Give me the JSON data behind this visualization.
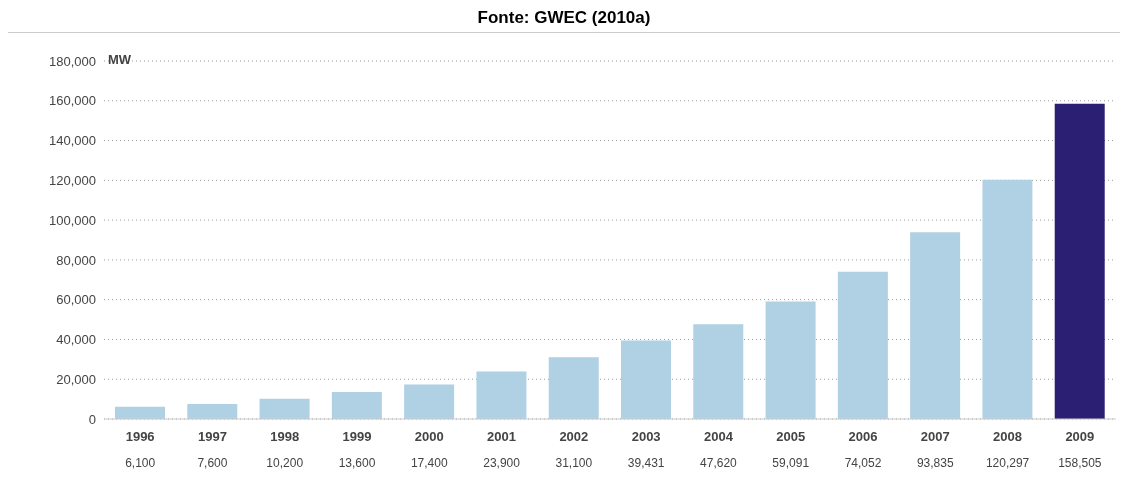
{
  "chart_data": {
    "type": "bar",
    "title": "Fonte: GWEC (2010a)",
    "ylabel": "MW",
    "categories": [
      "1996",
      "1997",
      "1998",
      "1999",
      "2000",
      "2001",
      "2002",
      "2003",
      "2004",
      "2005",
      "2006",
      "2007",
      "2008",
      "2009"
    ],
    "values": [
      6100,
      7600,
      10200,
      13600,
      17400,
      23900,
      31100,
      39431,
      47620,
      59091,
      74052,
      93835,
      120297,
      158505
    ],
    "value_labels": [
      "6,100",
      "7,600",
      "10,200",
      "13,600",
      "17,400",
      "23,900",
      "31,100",
      "39,431",
      "47,620",
      "59,091",
      "74,052",
      "93,835",
      "120,297",
      "158,505"
    ],
    "colors": [
      "#b0d0e3",
      "#b0d0e3",
      "#b0d0e3",
      "#b0d0e3",
      "#b0d0e3",
      "#b0d0e3",
      "#b0d0e3",
      "#b0d0e3",
      "#b0d0e3",
      "#b0d0e3",
      "#b0d0e3",
      "#b0d0e3",
      "#b0d0e3",
      "#2b1f74"
    ],
    "ylim": [
      0,
      180000
    ],
    "yticks": [
      0,
      {
        "value": 20000,
        "label": "20,000"
      },
      {
        "value": 40000,
        "label": "40,000"
      },
      {
        "value": 60000,
        "label": "60,000"
      },
      {
        "value": 80000,
        "label": "80,000"
      },
      {
        "value": 100000,
        "label": "100,000"
      },
      {
        "value": 120000,
        "label": "120,000"
      },
      {
        "value": 140000,
        "label": "140,000"
      },
      {
        "value": 160000,
        "label": "160,000"
      },
      {
        "value": 180000,
        "label": "180,000"
      }
    ],
    "grid": "y"
  }
}
